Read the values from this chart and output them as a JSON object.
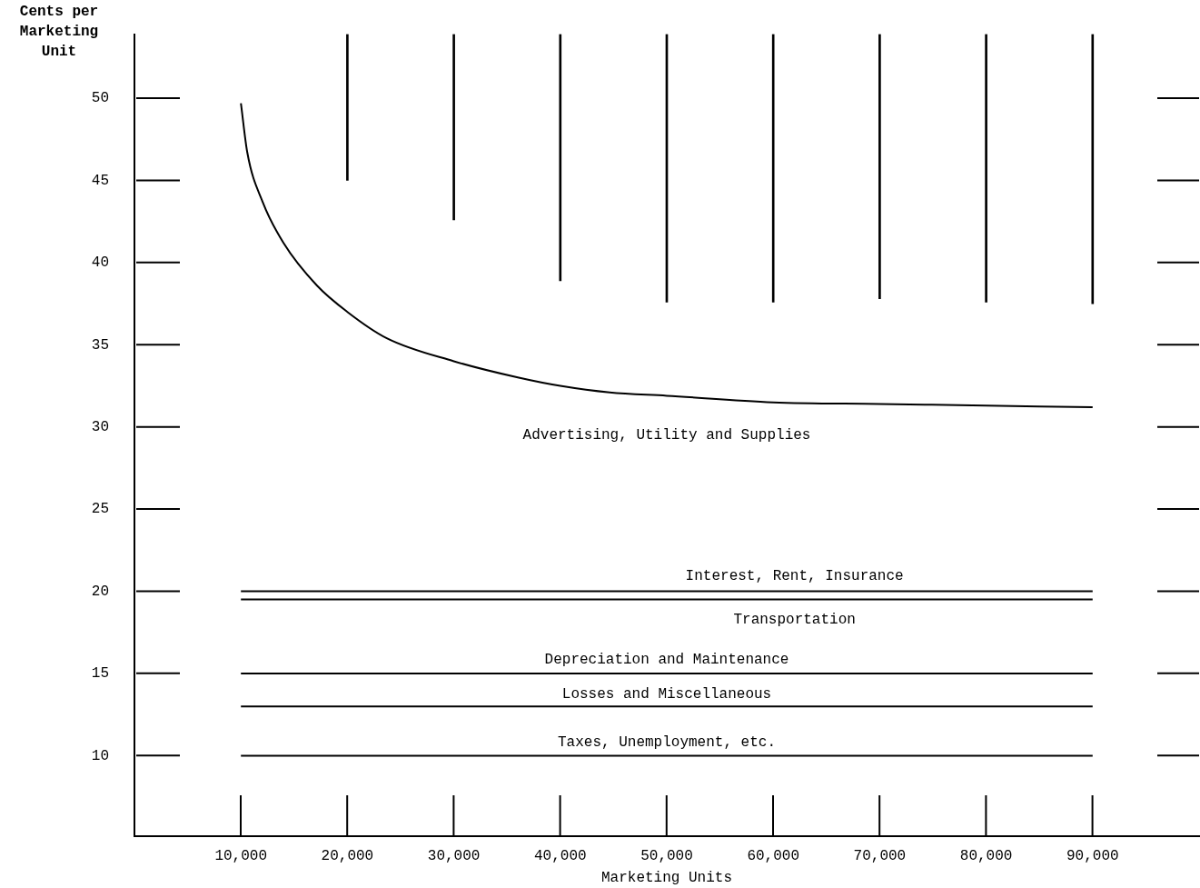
{
  "chart_data": {
    "type": "line",
    "xlabel": "Marketing Units",
    "ylabel": "Cents per Marketing Unit",
    "xlim": [
      0,
      100000
    ],
    "ylim": [
      5.1,
      53.9
    ],
    "xticks": [
      {
        "value": 10000,
        "label": "10,000"
      },
      {
        "value": 20000,
        "label": "20,000"
      },
      {
        "value": 30000,
        "label": "30,000"
      },
      {
        "value": 40000,
        "label": "40,000"
      },
      {
        "value": 50000,
        "label": "50,000"
      },
      {
        "value": 60000,
        "label": "60,000"
      },
      {
        "value": 70000,
        "label": "70,000"
      },
      {
        "value": 80000,
        "label": "80,000"
      },
      {
        "value": 90000,
        "label": "90,000"
      }
    ],
    "yticks": [
      10,
      15,
      20,
      25,
      30,
      35,
      40,
      45,
      50
    ],
    "marker": "none",
    "series": [
      {
        "name": "Advertising, Utility and Supplies",
        "color": "#000000",
        "x": [
          10000,
          10600,
          12040,
          14000,
          17150,
          20000,
          23700,
          30000,
          36100,
          40000,
          44640,
          50000,
          60000,
          70000,
          80000,
          90000
        ],
        "values": [
          49.7,
          46.7,
          43.7,
          41.2,
          38.6,
          37.0,
          35.4,
          34.0,
          33.0,
          32.5,
          32.1,
          31.9,
          31.5,
          31.4,
          31.3,
          31.2
        ]
      },
      {
        "name": "Interest, Rent, Insurance",
        "color": "#000000",
        "x": [
          10000,
          90000
        ],
        "values": [
          20,
          20
        ]
      },
      {
        "name": "Transportation",
        "color": "#000000",
        "x": [
          10000,
          90000
        ],
        "values": [
          19.5,
          19.5
        ]
      },
      {
        "name": "Depreciation and Maintenance",
        "color": "#000000",
        "x": [
          10000,
          90000
        ],
        "values": [
          15,
          15
        ]
      },
      {
        "name": "Losses and Miscellaneous",
        "color": "#000000",
        "x": [
          10000,
          90000
        ],
        "values": [
          13,
          13
        ]
      },
      {
        "name": "Taxes, Unemployment, etc.",
        "color": "#000000",
        "x": [
          10000,
          90000
        ],
        "values": [
          10,
          10
        ]
      },
      {
        "type": "bar",
        "color": "#000000",
        "x": [
          20000,
          30000,
          40000,
          50000,
          60000,
          70000,
          80000,
          90000
        ],
        "base": [
          45.0,
          42.6,
          38.9,
          37.6,
          37.6,
          37.8,
          37.6,
          37.5
        ],
        "values": [
          8.9,
          11.3,
          15.0,
          16.3,
          16.3,
          16.1,
          16.3,
          16.4
        ]
      }
    ]
  }
}
